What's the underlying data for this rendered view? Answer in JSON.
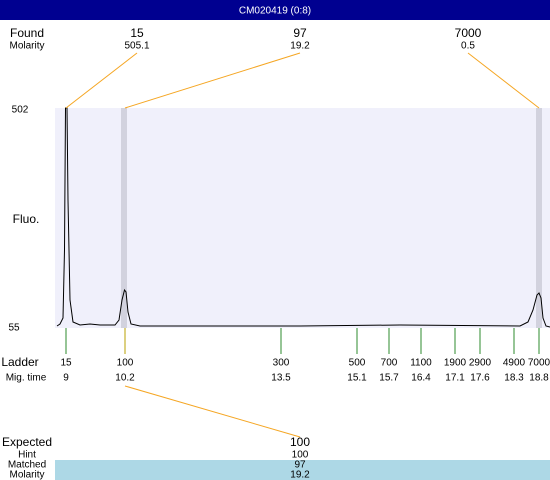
{
  "header": {
    "title": "CM020419 (0:8)"
  },
  "found": {
    "label": "Found",
    "sublabel": "Molarity",
    "peaks": [
      {
        "size": 15,
        "molarity": 505.1
      },
      {
        "size": 97,
        "molarity": 19.2
      },
      {
        "size": 7000,
        "molarity": 0.5
      }
    ]
  },
  "plot": {
    "y_label": "Fluo.",
    "y_top": 502,
    "y_bottom": 55
  },
  "ladder": {
    "label": "Ladder",
    "sublabel": "Mig. time",
    "bands": [
      {
        "size": 15,
        "time": 9
      },
      {
        "size": 100,
        "time": 10.2
      },
      {
        "size": 300,
        "time": 13.5
      },
      {
        "size": 500,
        "time": 15.1
      },
      {
        "size": 700,
        "time": 15.7
      },
      {
        "size": 1100,
        "time": 16.4
      },
      {
        "size": 1900,
        "time": 17.1
      },
      {
        "size": 2900,
        "time": 17.6
      },
      {
        "size": 4900,
        "time": 18.3
      },
      {
        "size": 7000,
        "time": 18.8
      }
    ]
  },
  "expected": {
    "label": "Expected",
    "value": 100,
    "rows": [
      {
        "label": "Hint",
        "value": 100
      },
      {
        "label": "Matched",
        "value": 97
      },
      {
        "label": "Molarity",
        "value": 19.2
      }
    ]
  }
}
